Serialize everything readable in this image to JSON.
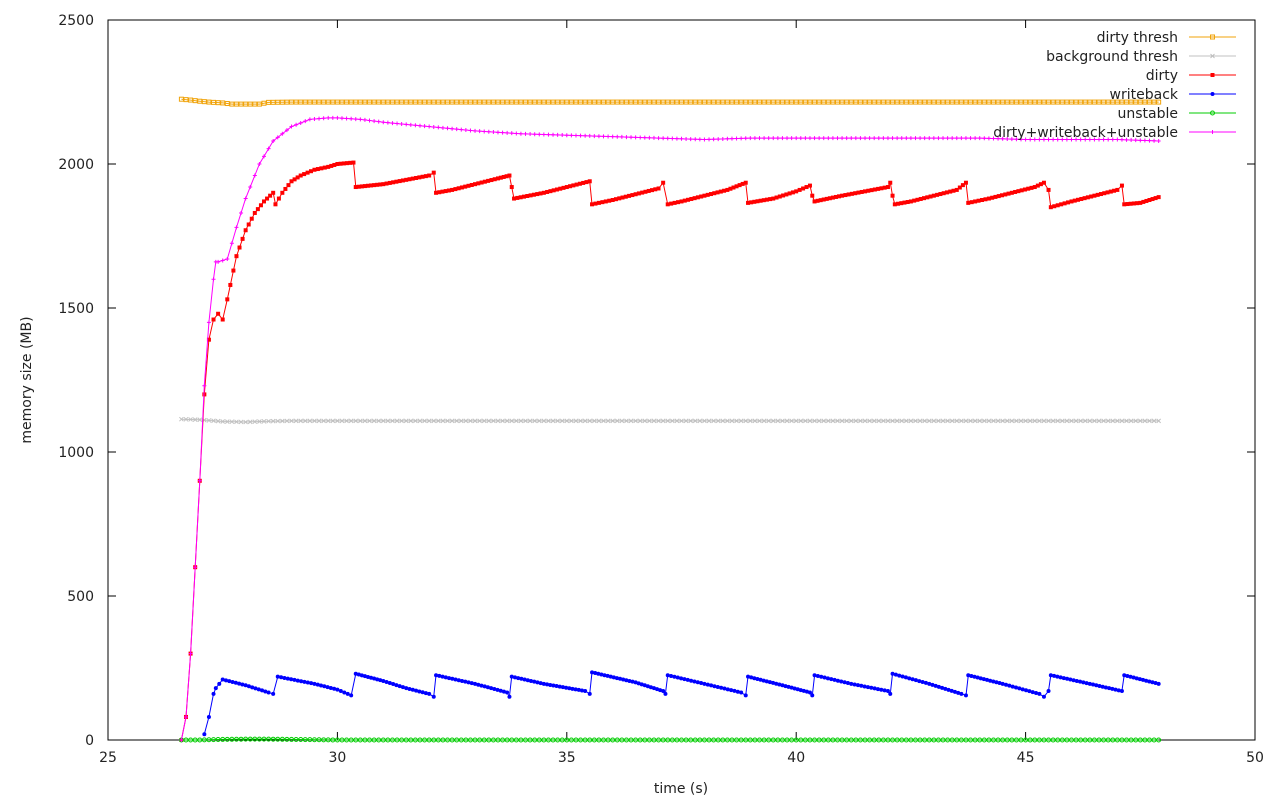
{
  "chart_data": {
    "type": "line",
    "title": "",
    "xlabel": "time (s)",
    "ylabel": "memory size (MB)",
    "xlim": [
      25,
      50
    ],
    "ylim": [
      0,
      2500
    ],
    "xticks": [
      25,
      30,
      35,
      40,
      45,
      50
    ],
    "yticks": [
      0,
      500,
      1000,
      1500,
      2000,
      2500
    ],
    "grid": false,
    "legend_position": "top-right",
    "series": [
      {
        "name": "dirty thresh",
        "color": "#f0a30a",
        "marker": "square-open",
        "x": [
          26.6,
          26.8,
          27.0,
          27.2,
          27.5,
          27.7,
          28.0,
          28.3,
          28.5,
          29.0,
          30.0,
          35.0,
          40.0,
          45.0,
          47.9
        ],
        "y": [
          2225,
          2222,
          2218,
          2215,
          2212,
          2208,
          2208,
          2208,
          2214,
          2215,
          2215,
          2215,
          2215,
          2215,
          2215
        ]
      },
      {
        "name": "background thresh",
        "color": "#c0c0c0",
        "marker": "x",
        "x": [
          26.6,
          27.0,
          27.5,
          28.0,
          28.5,
          29.0,
          30.0,
          35.0,
          40.0,
          45.0,
          47.9
        ],
        "y": [
          1114,
          1112,
          1106,
          1104,
          1107,
          1108,
          1108,
          1108,
          1108,
          1108,
          1108
        ]
      },
      {
        "name": "dirty",
        "color": "#ff0000",
        "marker": "square-filled",
        "x": [
          26.6,
          26.7,
          26.8,
          26.9,
          27.0,
          27.1,
          27.2,
          27.3,
          27.4,
          27.5,
          27.6,
          27.8,
          28.0,
          28.2,
          28.4,
          28.6,
          28.65,
          28.8,
          29.0,
          29.2,
          29.5,
          29.8,
          30.0,
          30.35,
          30.4,
          31.0,
          31.5,
          32.0,
          32.1,
          32.15,
          32.5,
          33.0,
          33.5,
          33.75,
          33.8,
          33.85,
          34.5,
          35.0,
          35.5,
          35.55,
          36.0,
          36.5,
          37.0,
          37.1,
          37.2,
          37.5,
          38.0,
          38.5,
          38.9,
          38.95,
          39.5,
          40.0,
          40.3,
          40.35,
          40.4,
          41.0,
          41.5,
          42.0,
          42.05,
          42.1,
          42.15,
          42.5,
          43.0,
          43.5,
          43.7,
          43.75,
          44.2,
          44.7,
          45.2,
          45.4,
          45.5,
          45.55,
          46.0,
          46.5,
          47.0,
          47.1,
          47.15,
          47.5,
          47.9
        ],
        "y": [
          0,
          80,
          300,
          600,
          900,
          1200,
          1390,
          1460,
          1480,
          1460,
          1530,
          1680,
          1770,
          1830,
          1870,
          1900,
          1860,
          1900,
          1940,
          1960,
          1980,
          1990,
          2000,
          2005,
          1920,
          1930,
          1945,
          1960,
          1970,
          1900,
          1910,
          1930,
          1950,
          1960,
          1920,
          1880,
          1900,
          1920,
          1940,
          1860,
          1875,
          1895,
          1915,
          1935,
          1860,
          1870,
          1890,
          1910,
          1935,
          1865,
          1880,
          1905,
          1925,
          1890,
          1870,
          1890,
          1905,
          1920,
          1935,
          1890,
          1860,
          1870,
          1890,
          1910,
          1935,
          1865,
          1880,
          1900,
          1920,
          1935,
          1910,
          1850,
          1870,
          1890,
          1910,
          1925,
          1860,
          1865,
          1885
        ]
      },
      {
        "name": "writeback",
        "color": "#0000ff",
        "marker": "circle-filled",
        "x": [
          27.1,
          27.2,
          27.3,
          27.35,
          27.5,
          28.0,
          28.5,
          28.6,
          28.7,
          29.5,
          30.0,
          30.3,
          30.4,
          31.0,
          31.5,
          32.0,
          32.1,
          32.15,
          33.0,
          33.7,
          33.75,
          33.8,
          34.5,
          35.4,
          35.5,
          35.55,
          36.5,
          37.1,
          37.15,
          37.2,
          38.0,
          38.8,
          38.9,
          38.95,
          39.7,
          40.3,
          40.35,
          40.4,
          41.2,
          42.0,
          42.05,
          42.1,
          42.9,
          43.6,
          43.7,
          43.75,
          44.5,
          45.3,
          45.4,
          45.5,
          45.55,
          46.4,
          47.1,
          47.15,
          47.9
        ],
        "y": [
          20,
          80,
          160,
          180,
          210,
          190,
          165,
          160,
          220,
          195,
          175,
          155,
          230,
          205,
          180,
          160,
          150,
          225,
          195,
          165,
          150,
          220,
          195,
          170,
          160,
          235,
          200,
          170,
          160,
          225,
          195,
          165,
          155,
          220,
          190,
          165,
          155,
          225,
          195,
          170,
          160,
          230,
          195,
          160,
          155,
          225,
          195,
          160,
          150,
          170,
          225,
          195,
          170,
          225,
          195
        ]
      },
      {
        "name": "unstable",
        "color": "#00cc00",
        "marker": "circle-open",
        "x": [
          26.6,
          27.0,
          27.5,
          28.0,
          28.5,
          29.0,
          29.5,
          30.0,
          35.0,
          40.0,
          45.0,
          47.9
        ],
        "y": [
          0,
          0,
          2,
          3,
          3,
          2,
          1,
          0,
          0,
          0,
          0,
          0
        ]
      },
      {
        "name": "dirty+writeback+unstable",
        "color": "#ff00ff",
        "marker": "plus",
        "x": [
          26.6,
          26.7,
          26.8,
          26.9,
          27.0,
          27.1,
          27.2,
          27.3,
          27.35,
          27.4,
          27.6,
          27.8,
          28.0,
          28.3,
          28.6,
          29.0,
          29.4,
          29.8,
          30.0,
          30.5,
          31.0,
          32.0,
          33.0,
          34.0,
          35.0,
          36.0,
          37.0,
          38.0,
          39.0,
          40.0,
          41.0,
          42.0,
          43.0,
          44.0,
          45.0,
          46.0,
          47.0,
          47.9
        ],
        "y": [
          0,
          80,
          300,
          600,
          900,
          1230,
          1450,
          1600,
          1660,
          1660,
          1670,
          1780,
          1880,
          2000,
          2080,
          2130,
          2155,
          2160,
          2160,
          2155,
          2145,
          2130,
          2115,
          2105,
          2100,
          2095,
          2090,
          2085,
          2090,
          2090,
          2090,
          2090,
          2090,
          2090,
          2085,
          2085,
          2085,
          2080
        ]
      }
    ]
  }
}
